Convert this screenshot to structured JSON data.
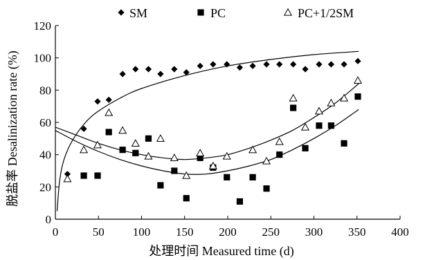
{
  "chart_data": {
    "type": "scatter",
    "xlabel": "处理时间 Measured time (d)",
    "ylabel": "脱盐率 Desalinization rate (%)",
    "xlim": [
      0,
      400
    ],
    "ylim": [
      0,
      120
    ],
    "xticks": [
      0,
      50,
      100,
      150,
      200,
      250,
      300,
      350,
      400
    ],
    "yticks": [
      0,
      20,
      40,
      60,
      80,
      100,
      120
    ],
    "grid": false,
    "legend_position": "top",
    "series": [
      {
        "name": "SM",
        "marker": "diamond",
        "color": "#000000",
        "x": [
          14,
          33,
          49,
          62,
          78,
          93,
          108,
          122,
          138,
          152,
          168,
          183,
          199,
          214,
          229,
          245,
          260,
          276,
          290,
          306,
          320,
          335,
          351
        ],
        "y": [
          28,
          56,
          73,
          74,
          90,
          93,
          93,
          90,
          93,
          91,
          95,
          96,
          96,
          94,
          95,
          96,
          96,
          96,
          93,
          96,
          96,
          96,
          98
        ]
      },
      {
        "name": "PC",
        "marker": "square",
        "color": "#000000",
        "x": [
          33,
          49,
          62,
          78,
          93,
          108,
          122,
          138,
          152,
          168,
          183,
          199,
          214,
          229,
          245,
          260,
          276,
          290,
          306,
          320,
          335,
          351
        ],
        "y": [
          27,
          27,
          54,
          43,
          41,
          50,
          21,
          30,
          13,
          38,
          32,
          26,
          11,
          26,
          19,
          40,
          69,
          44,
          58,
          58,
          47,
          76
        ]
      },
      {
        "name": "PC+1/2SM",
        "marker": "triangle-open",
        "color": "#000000",
        "x": [
          14,
          33,
          49,
          62,
          78,
          93,
          108,
          122,
          138,
          152,
          168,
          183,
          199,
          229,
          245,
          260,
          276,
          290,
          306,
          320,
          335,
          351
        ],
        "y": [
          25,
          43,
          46,
          66,
          55,
          47,
          39,
          50,
          38,
          27,
          41,
          33,
          39,
          43,
          36,
          48,
          75,
          57,
          67,
          72,
          75,
          86
        ]
      }
    ],
    "trend_lines": [
      {
        "series": "SM",
        "x": [
          2,
          5,
          10,
          20,
          35,
          50,
          75,
          100,
          150,
          200,
          250,
          300,
          352
        ],
        "y": [
          5,
          24,
          37,
          49,
          60,
          67,
          75,
          81,
          89,
          95,
          99,
          102,
          104
        ]
      },
      {
        "series": "PC+1/2SM",
        "x": [
          0,
          25,
          50,
          75,
          100,
          125,
          150,
          175,
          200,
          225,
          250,
          275,
          300,
          325,
          352
        ],
        "y": [
          57,
          52,
          47,
          43,
          40,
          38,
          37,
          38,
          40,
          44,
          49,
          55,
          63,
          72,
          84
        ]
      },
      {
        "series": "PC",
        "x": [
          0,
          25,
          50,
          75,
          100,
          125,
          150,
          175,
          200,
          225,
          250,
          275,
          300,
          325,
          352
        ],
        "y": [
          55,
          48,
          42,
          37,
          33,
          30,
          28,
          28,
          30,
          33,
          37,
          43,
          50,
          58,
          68
        ]
      }
    ]
  }
}
